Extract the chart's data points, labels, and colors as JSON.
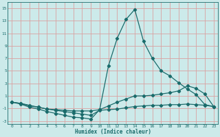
{
  "xlabel": "Humidex (Indice chaleur)",
  "ylabel": "",
  "bg_color": "#cceaea",
  "line_color": "#1a6b6b",
  "grid_color": "#daa0a0",
  "xlim": [
    -0.5,
    23.5
  ],
  "ylim": [
    -3.5,
    16
  ],
  "xticks": [
    0,
    1,
    2,
    3,
    4,
    5,
    6,
    7,
    8,
    9,
    10,
    11,
    12,
    13,
    14,
    15,
    16,
    17,
    18,
    19,
    20,
    21,
    22,
    23
  ],
  "yticks": [
    -3,
    -1,
    1,
    3,
    5,
    7,
    9,
    11,
    13,
    15
  ],
  "line1_x": [
    0,
    1,
    2,
    3,
    4,
    5,
    6,
    7,
    8,
    9,
    10,
    11,
    12,
    13,
    14,
    15,
    16,
    17,
    18,
    19,
    20,
    21,
    22,
    23
  ],
  "line1_y": [
    0.0,
    -0.3,
    -0.8,
    -1.1,
    -1.5,
    -1.8,
    -2.1,
    -2.4,
    -2.5,
    -2.7,
    -1.2,
    5.8,
    10.2,
    13.2,
    14.8,
    9.7,
    7.0,
    5.0,
    4.2,
    3.1,
    2.1,
    1.2,
    -0.4,
    -0.7
  ],
  "line2_x": [
    0,
    1,
    2,
    3,
    4,
    5,
    6,
    7,
    8,
    9,
    10,
    11,
    12,
    13,
    14,
    15,
    16,
    17,
    18,
    19,
    20,
    21,
    22,
    23
  ],
  "line2_y": [
    0.0,
    -0.2,
    -0.5,
    -0.8,
    -1.1,
    -1.2,
    -1.3,
    -1.4,
    -1.4,
    -1.4,
    -1.2,
    -0.6,
    0.0,
    0.5,
    1.0,
    1.0,
    1.1,
    1.3,
    1.5,
    1.8,
    2.6,
    2.2,
    1.3,
    -0.7
  ],
  "line3_x": [
    0,
    1,
    2,
    3,
    4,
    5,
    6,
    7,
    8,
    9,
    10,
    11,
    12,
    13,
    14,
    15,
    16,
    17,
    18,
    19,
    20,
    21,
    22,
    23
  ],
  "line3_y": [
    0.0,
    -0.2,
    -0.6,
    -0.8,
    -1.1,
    -1.3,
    -1.5,
    -1.7,
    -1.9,
    -2.1,
    -1.3,
    -1.2,
    -1.1,
    -0.9,
    -0.7,
    -0.6,
    -0.5,
    -0.5,
    -0.4,
    -0.4,
    -0.3,
    -0.4,
    -0.5,
    -0.7
  ]
}
